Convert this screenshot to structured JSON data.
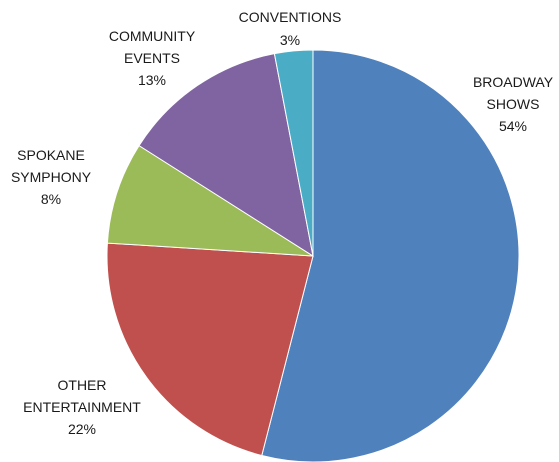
{
  "chart_data": {
    "type": "pie",
    "start_angle_deg": 0,
    "direction": "clockwise",
    "colors": {
      "broadway": "#4F81BD",
      "other": "#C0504D",
      "symphony": "#9BBB59",
      "community": "#8064A2",
      "conventions": "#4BACC6"
    },
    "slices": [
      {
        "key": "broadway",
        "value": 54,
        "label_lines": [
          "BROADWAY",
          "SHOWS"
        ],
        "pct_label": "54%",
        "color": "#4F81BD"
      },
      {
        "key": "other",
        "value": 22,
        "label_lines": [
          "OTHER",
          "ENTERTAINMENT"
        ],
        "pct_label": "22%",
        "color": "#C0504D"
      },
      {
        "key": "symphony",
        "value": 8,
        "label_lines": [
          "SPOKANE",
          "SYMPHONY"
        ],
        "pct_label": "8%",
        "color": "#9BBB59"
      },
      {
        "key": "community",
        "value": 13,
        "label_lines": [
          "COMMUNITY",
          "EVENTS"
        ],
        "pct_label": "13%",
        "color": "#8064A2"
      },
      {
        "key": "conventions",
        "value": 3,
        "label_lines": [
          "CONVENTIONS"
        ],
        "pct_label": "3%",
        "color": "#4BACC6"
      }
    ]
  }
}
